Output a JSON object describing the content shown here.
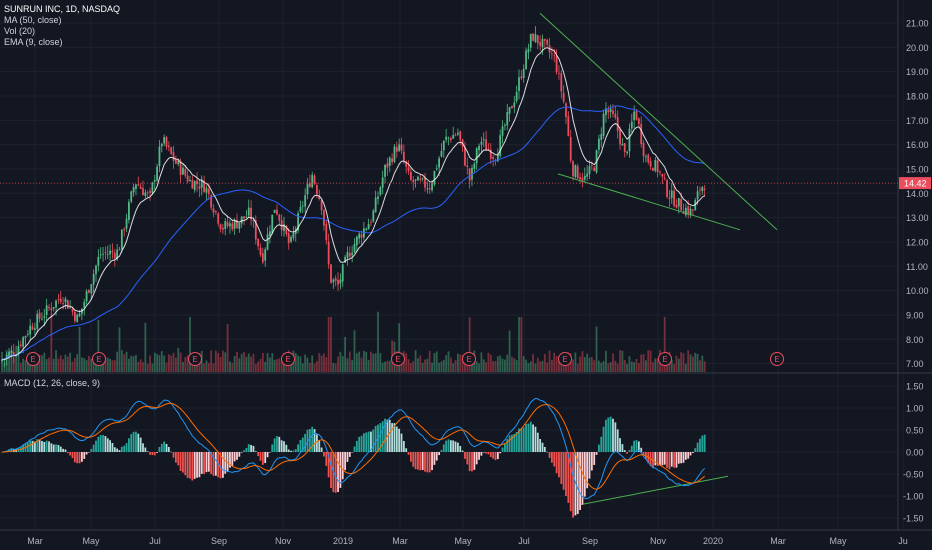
{
  "price_pane": {
    "symbol_line": "SUNRUN INC, 1D, NASDAQ",
    "indicators": [
      "MA (50, close)",
      "Vol (20)",
      "EMA (9, close)"
    ],
    "y_ticks": [
      "21.00",
      "20.00",
      "19.00",
      "18.00",
      "17.00",
      "16.00",
      "15.00",
      "14.00",
      "13.00",
      "12.00",
      "11.00",
      "10.00",
      "9.00",
      "8.00",
      "7.00"
    ],
    "last_price": "14.42",
    "earnings_marker": "E"
  },
  "macd_pane": {
    "label": "MACD (12, 26, close, 9)",
    "y_ticks": [
      "1.50",
      "1.00",
      "0.50",
      "0.00",
      "-0.50",
      "-1.00",
      "-1.50"
    ]
  },
  "time_axis": {
    "labels": [
      "Mar",
      "May",
      "Jul",
      "Sep",
      "Nov",
      "2019",
      "Mar",
      "May",
      "Jul",
      "Sep",
      "Nov",
      "2020",
      "Mar",
      "May",
      "Ju"
    ]
  },
  "colors": {
    "background": "#131722",
    "up": "#53b987",
    "down": "#eb4d5c",
    "ma": "#2962ff",
    "ema": "#ffffff",
    "trendline": "#4caf50",
    "macd_line": "#2196f3",
    "signal_line": "#ff6d00",
    "price_tag": "#eb4d5c"
  },
  "chart_data": {
    "type": "candlestick",
    "price_range": [
      6.5,
      21.5
    ],
    "key_prices": [
      {
        "date": "2018-02",
        "price": 7.0
      },
      {
        "date": "2018-07",
        "price": 16.2
      },
      {
        "date": "2018-09",
        "price": 12.5
      },
      {
        "date": "2018-11",
        "price": 14.8
      },
      {
        "date": "2018-12",
        "price": 10.0
      },
      {
        "date": "2019-05",
        "price": 17.0
      },
      {
        "date": "2019-07",
        "price": 20.8
      },
      {
        "date": "2019-08",
        "price": 14.5
      },
      {
        "date": "2019-10",
        "price": 17.5
      },
      {
        "date": "2019-12",
        "price": 13.2
      },
      {
        "date": "2019-12-24",
        "price": 14.42
      }
    ],
    "macd_range": [
      -1.7,
      1.7
    ]
  }
}
